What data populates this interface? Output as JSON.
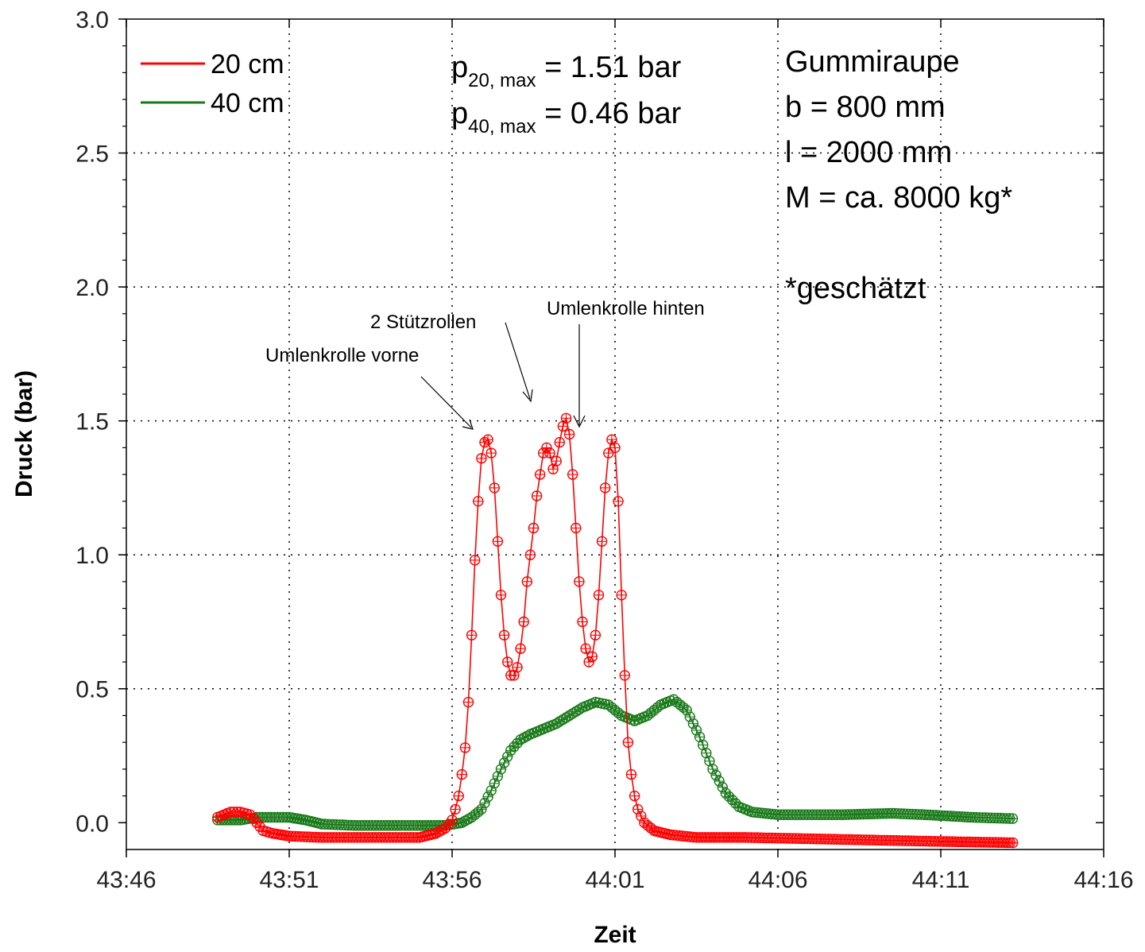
{
  "chart_data": {
    "type": "line",
    "xlabel": "Zeit",
    "ylabel": "Druck (bar)",
    "xlim": [
      "43:46",
      "44:16"
    ],
    "ylim": [
      -0.1,
      3.0
    ],
    "x_ticks": [
      "43:46",
      "43:51",
      "43:56",
      "44:01",
      "44:06",
      "44:11",
      "44:16"
    ],
    "y_ticks": [
      "0.0",
      "0.5",
      "1.0",
      "1.5",
      "2.0",
      "2.5",
      "3.0"
    ],
    "grid": true,
    "legend_position": "top-left",
    "series": [
      {
        "name": "20 cm",
        "color": "#ff0000",
        "marker": "circle-cross",
        "points": [
          [
            "43:48.8",
            0.02
          ],
          [
            "43:49.0",
            0.03
          ],
          [
            "43:49.2",
            0.04
          ],
          [
            "43:49.5",
            0.04
          ],
          [
            "43:49.8",
            0.03
          ],
          [
            "43:50.0",
            0.0
          ],
          [
            "43:50.2",
            -0.03
          ],
          [
            "43:50.5",
            -0.04
          ],
          [
            "43:51.0",
            -0.05
          ],
          [
            "43:52.0",
            -0.055
          ],
          [
            "43:53.0",
            -0.055
          ],
          [
            "43:54.0",
            -0.055
          ],
          [
            "43:55.0",
            -0.055
          ],
          [
            "43:55.5",
            -0.04
          ],
          [
            "43:55.8",
            -0.02
          ],
          [
            "43:56.0",
            0.01
          ],
          [
            "43:56.1",
            0.05
          ],
          [
            "43:56.2",
            0.1
          ],
          [
            "43:56.3",
            0.18
          ],
          [
            "43:56.4",
            0.28
          ],
          [
            "43:56.5",
            0.45
          ],
          [
            "43:56.6",
            0.7
          ],
          [
            "43:56.7",
            0.98
          ],
          [
            "43:56.8",
            1.2
          ],
          [
            "43:56.9",
            1.36
          ],
          [
            "43:57.0",
            1.42
          ],
          [
            "43:57.1",
            1.43
          ],
          [
            "43:57.2",
            1.38
          ],
          [
            "43:57.3",
            1.25
          ],
          [
            "43:57.4",
            1.05
          ],
          [
            "43:57.5",
            0.85
          ],
          [
            "43:57.6",
            0.7
          ],
          [
            "43:57.7",
            0.6
          ],
          [
            "43:57.8",
            0.55
          ],
          [
            "43:57.9",
            0.55
          ],
          [
            "43:58.0",
            0.58
          ],
          [
            "43:58.1",
            0.65
          ],
          [
            "43:58.2",
            0.75
          ],
          [
            "43:58.3",
            0.9
          ],
          [
            "43:58.5",
            1.1
          ],
          [
            "43:58.6",
            1.22
          ],
          [
            "43:58.7",
            1.3
          ],
          [
            "43:58.8",
            1.38
          ],
          [
            "43:58.9",
            1.4
          ],
          [
            "43:59.0",
            1.38
          ],
          [
            "43:59.1",
            1.32
          ],
          [
            "43:59.2",
            1.35
          ],
          [
            "43:59.3",
            1.42
          ],
          [
            "43:59.4",
            1.48
          ],
          [
            "43:59.5",
            1.51
          ],
          [
            "43:59.6",
            1.45
          ],
          [
            "43:59.7",
            1.3
          ],
          [
            "43:59.8",
            1.1
          ],
          [
            "43:59.9",
            0.9
          ],
          [
            "44:00.0",
            0.75
          ],
          [
            "44:00.1",
            0.65
          ],
          [
            "44:00.2",
            0.6
          ],
          [
            "44:00.3",
            0.62
          ],
          [
            "44:00.4",
            0.7
          ],
          [
            "44:00.5",
            0.85
          ],
          [
            "44:00.6",
            1.05
          ],
          [
            "44:00.7",
            1.25
          ],
          [
            "44:00.8",
            1.38
          ],
          [
            "44:00.9",
            1.43
          ],
          [
            "44:01.0",
            1.4
          ],
          [
            "44:01.1",
            1.2
          ],
          [
            "44:01.2",
            0.85
          ],
          [
            "44:01.3",
            0.55
          ],
          [
            "44:01.4",
            0.3
          ],
          [
            "44:01.5",
            0.18
          ],
          [
            "44:01.6",
            0.1
          ],
          [
            "44:01.7",
            0.05
          ],
          [
            "44:01.9",
            0.0
          ],
          [
            "44:02.2",
            -0.03
          ],
          [
            "44:02.7",
            -0.045
          ],
          [
            "44:03.5",
            -0.055
          ],
          [
            "44:05.0",
            -0.055
          ],
          [
            "44:07.0",
            -0.06
          ],
          [
            "44:09.0",
            -0.065
          ],
          [
            "44:11.0",
            -0.07
          ],
          [
            "44:13.3",
            -0.075
          ]
        ]
      },
      {
        "name": "40 cm",
        "color": "#1a7a1a",
        "marker": "circle-cross",
        "points": [
          [
            "43:48.8",
            0.01
          ],
          [
            "43:49.5",
            0.01
          ],
          [
            "43:50.0",
            0.02
          ],
          [
            "43:51.0",
            0.02
          ],
          [
            "43:51.5",
            0.01
          ],
          [
            "43:52.0",
            -0.005
          ],
          [
            "43:53.0",
            -0.01
          ],
          [
            "43:54.0",
            -0.01
          ],
          [
            "43:55.0",
            -0.01
          ],
          [
            "43:55.8",
            -0.01
          ],
          [
            "43:56.3",
            0.0
          ],
          [
            "43:56.6",
            0.02
          ],
          [
            "43:56.9",
            0.05
          ],
          [
            "43:57.2",
            0.12
          ],
          [
            "43:57.5",
            0.2
          ],
          [
            "43:57.8",
            0.27
          ],
          [
            "43:58.1",
            0.31
          ],
          [
            "43:58.4",
            0.33
          ],
          [
            "43:58.8",
            0.35
          ],
          [
            "43:59.2",
            0.37
          ],
          [
            "43:59.6",
            0.4
          ],
          [
            "44:00.0",
            0.43
          ],
          [
            "44:00.4",
            0.45
          ],
          [
            "44:00.8",
            0.44
          ],
          [
            "44:01.2",
            0.4
          ],
          [
            "44:01.6",
            0.38
          ],
          [
            "44:02.0",
            0.4
          ],
          [
            "44:02.4",
            0.44
          ],
          [
            "44:02.8",
            0.46
          ],
          [
            "44:03.2",
            0.42
          ],
          [
            "44:03.6",
            0.32
          ],
          [
            "44:04.0",
            0.2
          ],
          [
            "44:04.4",
            0.11
          ],
          [
            "44:04.8",
            0.06
          ],
          [
            "44:05.2",
            0.04
          ],
          [
            "44:06.0",
            0.03
          ],
          [
            "44:08.0",
            0.03
          ],
          [
            "44:09.5",
            0.035
          ],
          [
            "44:10.5",
            0.03
          ],
          [
            "44:12.0",
            0.02
          ],
          [
            "44:13.3",
            0.015
          ]
        ]
      }
    ],
    "annotations": {
      "p20_main": "p",
      "p20_sub": "20, max",
      "p20_value": " = 1.51 bar",
      "p40_main": "p",
      "p40_sub": "40, max",
      "p40_value": " = 0.46 bar",
      "info_lines": [
        "Gummiraupe",
        "b = 800 mm",
        "l = 2000 mm",
        "M = ca. 8000 kg*",
        "",
        "*geschätzt"
      ],
      "labels": [
        "Umlenkrolle vorne",
        "2 Stützrollen",
        "Umlenkrolle hinten"
      ]
    }
  }
}
